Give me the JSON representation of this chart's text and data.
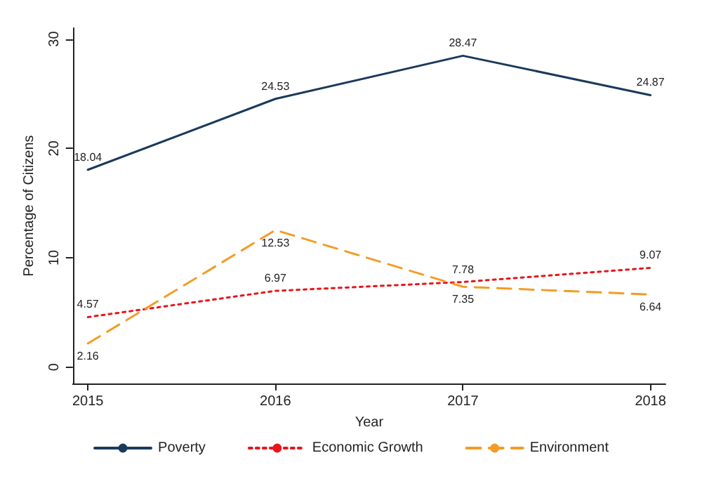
{
  "chart_data": {
    "type": "line",
    "xlabel": "Year",
    "ylabel": "Percentage of Citizens",
    "x": [
      2015,
      2016,
      2017,
      2018
    ],
    "xlim": [
      2014.92,
      2018.08
    ],
    "xticks": [
      2015,
      2016,
      2017,
      2018
    ],
    "ylim": [
      -1.5,
      31
    ],
    "yticks": [
      0,
      10,
      20,
      30
    ],
    "legend": "bottom",
    "data_labels": true,
    "marker": "none",
    "series": [
      {
        "name": "Poverty",
        "color": "#1a3a5c",
        "line_style": "solid",
        "values": [
          18.04,
          24.53,
          28.47,
          24.87
        ]
      },
      {
        "name": "Economic Growth",
        "color": "#e8161b",
        "line_style": "dotted",
        "values": [
          4.57,
          6.97,
          7.78,
          9.07
        ]
      },
      {
        "name": "Environment",
        "color": "#f39c25",
        "line_style": "dashed",
        "values": [
          2.16,
          12.53,
          7.35,
          6.64
        ]
      }
    ]
  }
}
